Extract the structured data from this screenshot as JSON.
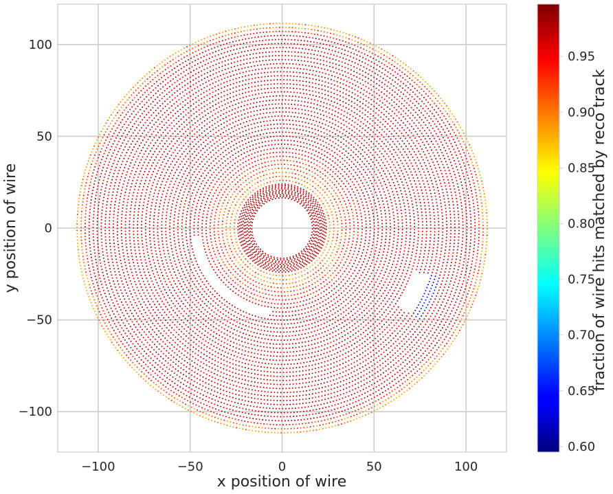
{
  "chart_data": {
    "type": "scatter",
    "title": "",
    "xlabel": "x position of wire",
    "ylabel": "y position of wire",
    "xlim": [
      -122,
      122
    ],
    "ylim": [
      -122,
      122
    ],
    "x_ticks": [
      -100,
      -50,
      0,
      50,
      100
    ],
    "y_ticks": [
      -100,
      -50,
      0,
      50,
      100
    ],
    "x_tick_labels": [
      "−100",
      "−50",
      "0",
      "50",
      "100"
    ],
    "y_tick_labels": [
      "−100",
      "−50",
      "0",
      "50",
      "100"
    ],
    "grid": true,
    "colorbar": {
      "label": "fraction of wire hits matched by reco track",
      "colormap": "jet",
      "range": [
        0.595,
        0.997
      ],
      "ticks": [
        0.6,
        0.65,
        0.7,
        0.75,
        0.8,
        0.85,
        0.9,
        0.95
      ],
      "tick_labels": [
        "0.60",
        "0.65",
        "0.70",
        "0.75",
        "0.80",
        "0.85",
        "0.90",
        "0.95"
      ]
    },
    "inner_rings": {
      "count": 10,
      "r_min": 16.5,
      "r_max": 24.0,
      "value_range": [
        0.96,
        0.997
      ]
    },
    "outer_rings": {
      "count": 40,
      "r_min": 26.0,
      "r_max": 111.5,
      "value_range": [
        0.88,
        0.997
      ]
    },
    "gaps": [
      {
        "r_min": 45,
        "r_max": 48,
        "angle_deg": [
          185,
          262
        ]
      },
      {
        "r_min": 75,
        "r_max": 85,
        "angle_deg": [
          326,
          342
        ]
      }
    ],
    "low_region": {
      "r_min": 82,
      "r_max": 91,
      "angle_deg": [
        326,
        343
      ],
      "value": 0.64
    }
  }
}
